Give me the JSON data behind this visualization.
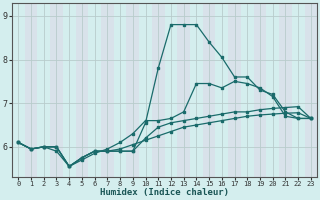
{
  "xlabel": "Humidex (Indice chaleur)",
  "bg_color": "#d4eeee",
  "grid_color": "#b8cccc",
  "line_color": "#1a6b6b",
  "x_values": [
    0,
    1,
    2,
    3,
    4,
    5,
    6,
    7,
    8,
    9,
    10,
    11,
    12,
    13,
    14,
    15,
    16,
    17,
    18,
    19,
    20,
    21,
    22,
    23
  ],
  "series1": [
    6.1,
    5.95,
    6.0,
    6.0,
    5.55,
    5.75,
    5.9,
    5.9,
    5.9,
    5.9,
    6.55,
    7.8,
    8.8,
    8.8,
    8.8,
    8.4,
    8.05,
    7.6,
    7.6,
    7.3,
    7.2,
    6.8,
    6.65,
    6.65
  ],
  "series2": [
    6.1,
    5.95,
    6.0,
    5.9,
    5.55,
    5.7,
    5.85,
    5.95,
    6.1,
    6.3,
    6.6,
    6.6,
    6.65,
    6.8,
    7.45,
    7.45,
    7.35,
    7.5,
    7.45,
    7.35,
    7.15,
    6.7,
    6.65,
    6.65
  ],
  "series3": [
    6.1,
    5.95,
    6.0,
    6.0,
    5.55,
    5.75,
    5.9,
    5.9,
    5.9,
    5.9,
    6.2,
    6.45,
    6.55,
    6.6,
    6.65,
    6.7,
    6.75,
    6.8,
    6.8,
    6.85,
    6.88,
    6.9,
    6.92,
    6.65
  ],
  "series4": [
    6.1,
    5.95,
    6.0,
    6.0,
    5.55,
    5.75,
    5.9,
    5.9,
    5.95,
    6.05,
    6.15,
    6.25,
    6.35,
    6.45,
    6.5,
    6.55,
    6.6,
    6.65,
    6.7,
    6.73,
    6.75,
    6.77,
    6.78,
    6.65
  ],
  "ylim": [
    5.3,
    9.3
  ],
  "yticks": [
    6,
    7,
    8,
    9
  ],
  "xlim": [
    -0.5,
    23.5
  ],
  "alt_band_color": "#ddd8e8",
  "spine_color": "#555555"
}
